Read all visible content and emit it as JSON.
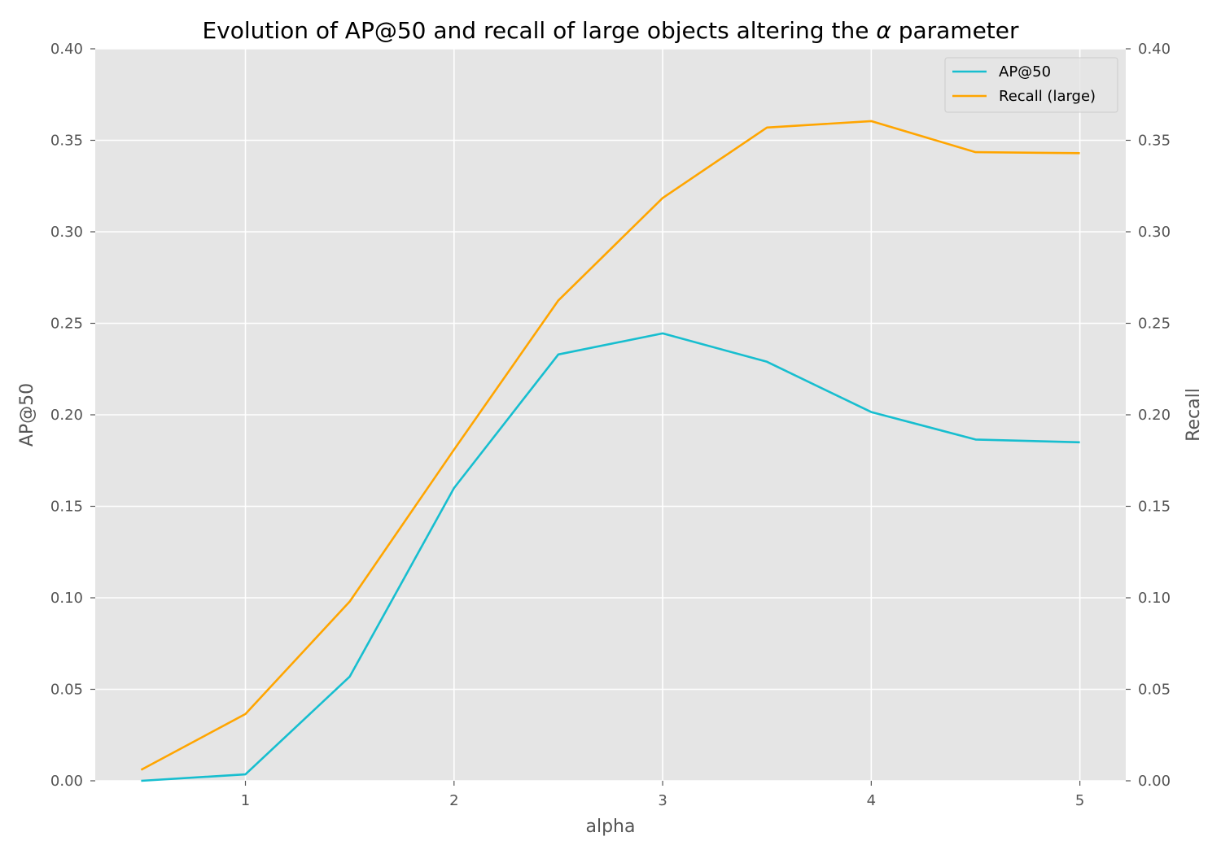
{
  "chart_data": {
    "type": "line",
    "title_prefix": "Evolution of AP@50 and recall of large objects altering the ",
    "title_symbol": "α",
    "title_suffix": " parameter",
    "xlabel": "alpha",
    "ylabel_left": "AP@50",
    "ylabel_right": "Recall",
    "x": [
      0.5,
      1.0,
      1.5,
      2.0,
      2.5,
      3.0,
      3.5,
      4.0,
      4.5,
      5.0
    ],
    "xlim": [
      0.28,
      5.22
    ],
    "xticks": [
      1,
      2,
      3,
      4,
      5
    ],
    "ylim_left": [
      0.0,
      0.4
    ],
    "ylim_right": [
      0.0,
      0.4
    ],
    "yticks": [
      "0.00",
      "0.05",
      "0.10",
      "0.15",
      "0.20",
      "0.25",
      "0.30",
      "0.35",
      "0.40"
    ],
    "grid": true,
    "legend_position": "top-right",
    "series": [
      {
        "name": "AP@50",
        "axis": "left",
        "color": "#17BECF",
        "values": [
          0.0,
          0.0035,
          0.057,
          0.16,
          0.233,
          0.2445,
          0.229,
          0.2015,
          0.1865,
          0.185
        ]
      },
      {
        "name": "Recall (large)",
        "axis": "right",
        "color": "#FFA500",
        "values": [
          0.006,
          0.0365,
          0.098,
          0.181,
          0.2625,
          0.3185,
          0.357,
          0.3605,
          0.3435,
          0.343
        ]
      }
    ],
    "colors": {
      "plot_background": "#E5E5E5",
      "grid": "#FFFFFF",
      "text": "#555555"
    }
  }
}
